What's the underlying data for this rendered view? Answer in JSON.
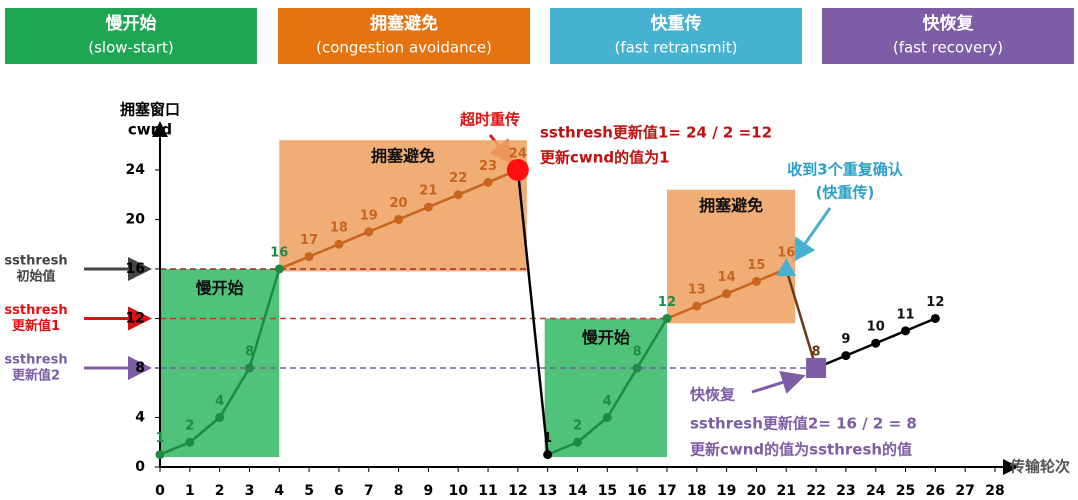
{
  "headers": [
    {
      "title": "慢开始",
      "subtitle": "(slow-start)",
      "color": "#1ea653"
    },
    {
      "title": "拥塞避免",
      "subtitle": "(congestion avoidance)",
      "color": "#e5730f"
    },
    {
      "title": "快重传",
      "subtitle": "(fast retransmit)",
      "color": "#46b1d0"
    },
    {
      "title": "快恢复",
      "subtitle": "(fast recovery)",
      "color": "#7d5da6"
    }
  ],
  "chart_data": {
    "type": "line",
    "y_label": [
      "拥塞窗口",
      "cwnd"
    ],
    "x_label": "传输轮次",
    "x": [
      0,
      1,
      2,
      3,
      4,
      5,
      6,
      7,
      8,
      9,
      10,
      11,
      12,
      13,
      14,
      15,
      16,
      17,
      18,
      19,
      20,
      21,
      22,
      23,
      24,
      25,
      26
    ],
    "series": [
      {
        "values": [
          1,
          2,
          4,
          8,
          16,
          17,
          18,
          19,
          20,
          21,
          22,
          23,
          24,
          1,
          2,
          4,
          8,
          12,
          13,
          14,
          15,
          16,
          8,
          9,
          10,
          11,
          12
        ],
        "segment_colors": [
          "#1e8a45",
          "#1e8a45",
          "#1e8a45",
          "#1e8a45",
          "#c8651e",
          "#c8651e",
          "#c8651e",
          "#c8651e",
          "#c8651e",
          "#c8651e",
          "#c8651e",
          "#c8651e",
          "#000000",
          "#1e8a45",
          "#1e8a45",
          "#1e8a45",
          "#1e8a45",
          "#c8651e",
          "#c8651e",
          "#c8651e",
          "#c8651e",
          "#6b3a1a",
          "#000000",
          "#000000",
          "#000000",
          "#000000"
        ]
      }
    ],
    "xlim": [
      0,
      28
    ],
    "xticks": [
      0,
      1,
      2,
      3,
      4,
      5,
      6,
      7,
      8,
      9,
      10,
      11,
      12,
      13,
      14,
      15,
      16,
      17,
      18,
      19,
      20,
      21,
      22,
      23,
      24,
      25,
      26,
      27,
      28
    ],
    "ylim": [
      0,
      26.5
    ],
    "yticks": [
      0,
      4,
      8,
      12,
      16,
      20,
      24
    ],
    "regions": [
      {
        "label": "慢开始",
        "x0": 0,
        "x1": 4,
        "y0": 0.8,
        "y1": 16,
        "color": "#3dbb6c"
      },
      {
        "label": "拥塞避免",
        "x0": 4,
        "x1": 12.3,
        "y0": 15.8,
        "y1": 26.4,
        "color": "#f0a467"
      },
      {
        "label": "慢开始",
        "x0": 12.9,
        "x1": 17,
        "y0": 0.8,
        "y1": 12,
        "color": "#3dbb6c"
      },
      {
        "label": "拥塞避免",
        "x0": 17,
        "x1": 21.3,
        "y0": 11.6,
        "y1": 22.4,
        "color": "#f0a467"
      }
    ],
    "thresholds": [
      {
        "value": 16,
        "x_end": 12.3,
        "label": [
          "ssthresh",
          "初始值"
        ],
        "color": "#9a2a2a",
        "label_color": "#444444",
        "arrow_color": "#444444"
      },
      {
        "value": 12,
        "x_end": 17,
        "label": [
          "ssthresh",
          "更新值1"
        ],
        "color": "#c0392b",
        "label_color": "#e01010",
        "arrow_color": "#e01010"
      },
      {
        "value": 8,
        "x_end": 21.8,
        "label": [
          "ssthresh",
          "更新值2"
        ],
        "color": "#7d5da6",
        "label_color": "#7d5da6",
        "arrow_color": "#7d5da6"
      }
    ],
    "markers": [
      {
        "x": 12,
        "y": 24,
        "shape": "circle",
        "color": "#ff1010"
      },
      {
        "x": 21,
        "y": 16,
        "shape": "triangle",
        "color": "#46b1d0"
      },
      {
        "x": 22,
        "y": 8,
        "shape": "square",
        "color": "#7d5da6"
      }
    ],
    "annotations": [
      "超时重传",
      "ssthresh更新值1= 24 / 2 =12",
      "更新cwnd的值为1",
      "收到3个重复确认",
      "(快重传)",
      "快恢复",
      "ssthresh更新值2= 16 / 2 = 8",
      "更新cwnd的值为ssthresh的值"
    ]
  }
}
